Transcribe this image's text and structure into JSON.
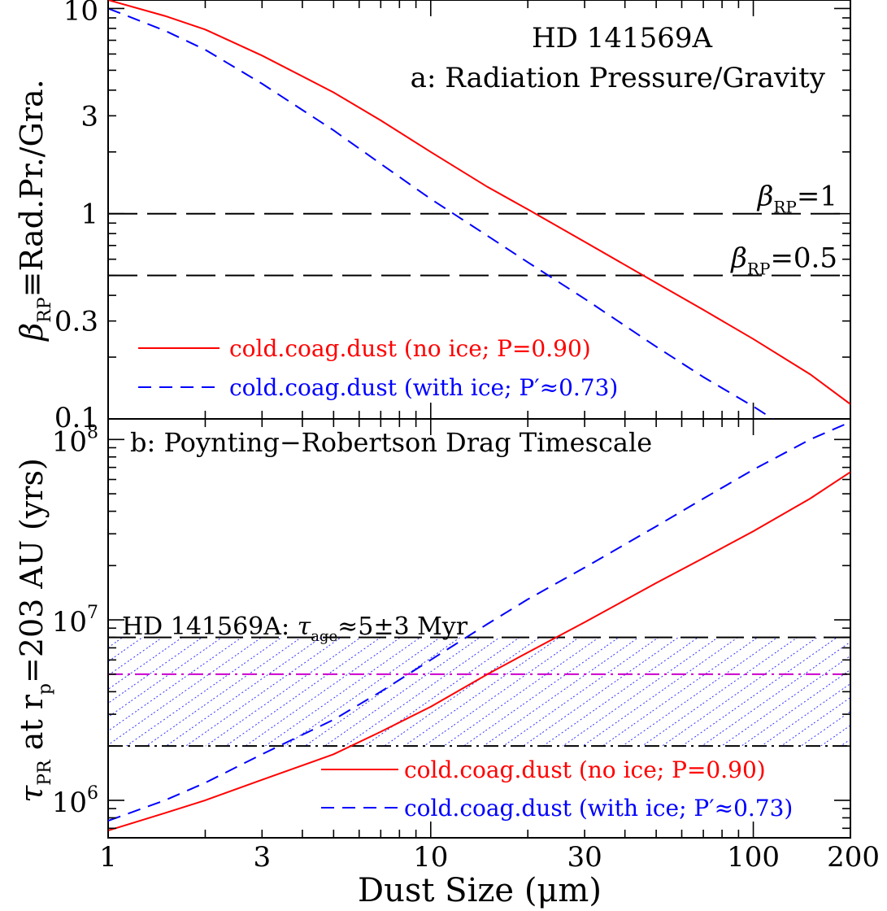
{
  "chart_data": [
    {
      "type": "line",
      "title_lines": [
        "HD 141569A",
        "a: Radiation Pressure/Gravity"
      ],
      "xlabel": "Dust Size  (μm)",
      "ylabel": "β_RP≡Rad.Pr./Gra.",
      "ylabel_parts": {
        "sym": "β",
        "sub": "RP",
        "rest": "≡Rad.Pr./Gra."
      },
      "xscale": "log",
      "yscale": "log",
      "xlim": [
        1,
        200
      ],
      "ylim": [
        0.1,
        11
      ],
      "yticks": [
        0.1,
        0.3,
        1,
        3,
        10
      ],
      "ytick_labels": [
        "0.1",
        "0.3",
        "1",
        "3",
        "10"
      ],
      "series": [
        {
          "name": "cold.coag.dust (no ice; P=0.90)",
          "color": "#ff0000",
          "style": "solid",
          "x": [
            1,
            1.5,
            2,
            3,
            5,
            7,
            10,
            15,
            20,
            30,
            50,
            70,
            100,
            150,
            200
          ],
          "y": [
            11,
            9.2,
            7.9,
            5.9,
            3.9,
            2.85,
            2.0,
            1.35,
            1.05,
            0.73,
            0.46,
            0.34,
            0.245,
            0.165,
            0.118
          ]
        },
        {
          "name": "cold.coag.dust (with ice; P′≈0.73)",
          "color": "#0000ff",
          "style": "dashed",
          "x": [
            1,
            1.5,
            2,
            3,
            5,
            7,
            10,
            15,
            20,
            30,
            50,
            70,
            100,
            115
          ],
          "y": [
            10,
            7.8,
            6.3,
            4.3,
            2.55,
            1.75,
            1.18,
            0.78,
            0.58,
            0.385,
            0.225,
            0.16,
            0.115,
            0.1
          ]
        }
      ],
      "hlines": [
        {
          "y": 1,
          "label_sym": "β",
          "label_sub": "RP",
          "label_rest": "=1"
        },
        {
          "y": 0.5,
          "label_sym": "β",
          "label_sub": "RP",
          "label_rest": "=0.5"
        }
      ]
    },
    {
      "type": "line",
      "title": "b: Poynting−Robertson Drag Timescale",
      "xlabel": "Dust Size  (μm)",
      "ylabel_parts": {
        "sym": "τ",
        "sub": "PR",
        "mid": " at r",
        "sub2": "p",
        "rest": "=203 AU (yrs)"
      },
      "xscale": "log",
      "yscale": "log",
      "xlim": [
        1,
        200
      ],
      "ylim": [
        620000,
        130000000
      ],
      "xticks": [
        1,
        3,
        10,
        30,
        100,
        200
      ],
      "xtick_labels": [
        "1",
        "3",
        "10",
        "30",
        "100",
        "200"
      ],
      "ytick_labels": [
        {
          "base": "10",
          "exp": "6"
        },
        {
          "base": "10",
          "exp": "7"
        },
        {
          "base": "10",
          "exp": "8"
        }
      ],
      "series": [
        {
          "name": "cold.coag.dust (no ice; P=0.90)",
          "color": "#ff0000",
          "style": "solid",
          "x": [
            1,
            1.5,
            2,
            3,
            5,
            7,
            10,
            15,
            20,
            30,
            50,
            70,
            100,
            150,
            200
          ],
          "y": [
            680000,
            850000,
            1000000,
            1300000,
            1800000,
            2400000,
            3300000,
            5000000,
            6600000,
            9700000,
            16000000,
            22000000,
            31000000,
            47000000,
            66000000
          ]
        },
        {
          "name": "cold.coag.dust (with ice; P′≈0.73)",
          "color": "#0000ff",
          "style": "dashed",
          "x": [
            1,
            1.5,
            2,
            3,
            5,
            7,
            10,
            15,
            20,
            30,
            50,
            70,
            100,
            150,
            200
          ],
          "y": [
            770000,
            1000000,
            1250000,
            1800000,
            2800000,
            4000000,
            6000000,
            9500000,
            13000000,
            19500000,
            33000000,
            47000000,
            68000000,
            100000000,
            125000000
          ]
        }
      ],
      "age_band": {
        "label_text": "HD 141569A: ",
        "label_sym": "τ",
        "label_sub": "age",
        "label_rest": "≈5±3 Myr",
        "center": 5000000,
        "lower": 2000000,
        "upper": 8000000,
        "hatch_color": "#0000ff",
        "center_color": "#cc00cc"
      }
    }
  ]
}
